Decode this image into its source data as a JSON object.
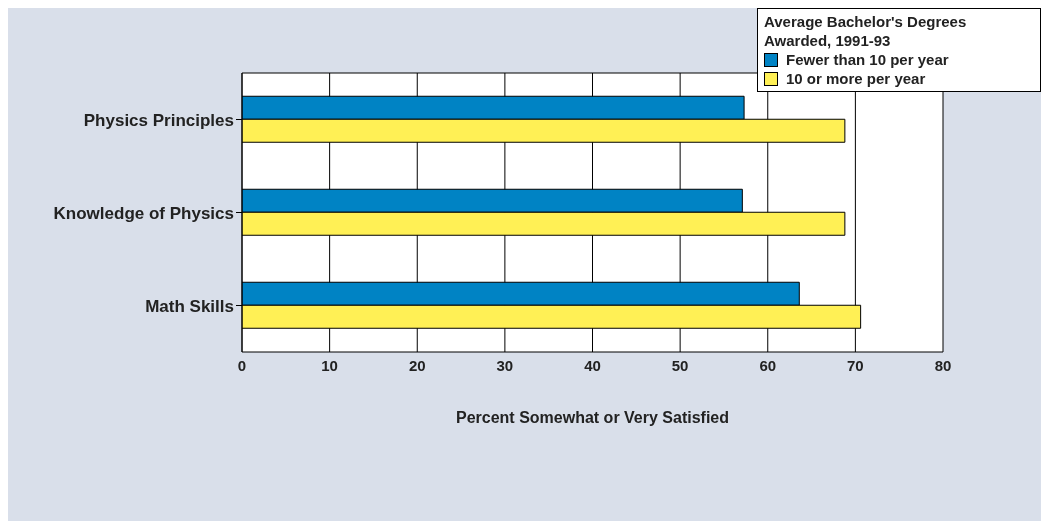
{
  "chart_data": {
    "type": "bar",
    "orientation": "horizontal",
    "categories": [
      "Physics Principles",
      "Knowledge of Physics",
      "Math Skills"
    ],
    "series": [
      {
        "name": "Fewer than 10 per year",
        "color": "#0083c4",
        "values": [
          57.3,
          57.1,
          63.6
        ]
      },
      {
        "name": "10 or more per year",
        "color": "#fff055",
        "values": [
          68.8,
          68.8,
          70.6
        ]
      }
    ],
    "legend_title": "Average Bachelor's Degrees Awarded, 1991-93",
    "legend": "top right",
    "xlabel": "Percent Somewhat or Very Satisfied",
    "xlim": [
      0,
      80
    ],
    "xticks": [
      0,
      10,
      20,
      30,
      40,
      50,
      60,
      70,
      80
    ],
    "grid": "x"
  }
}
